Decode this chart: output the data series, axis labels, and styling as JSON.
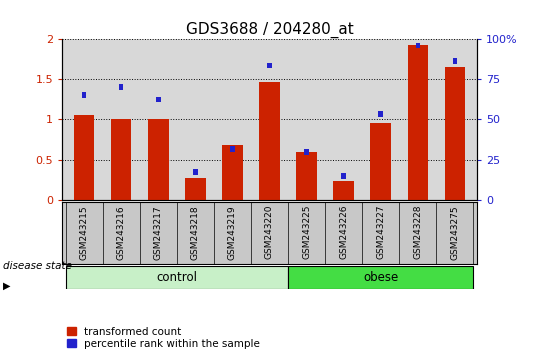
{
  "title": "GDS3688 / 204280_at",
  "samples": [
    "GSM243215",
    "GSM243216",
    "GSM243217",
    "GSM243218",
    "GSM243219",
    "GSM243220",
    "GSM243225",
    "GSM243226",
    "GSM243227",
    "GSM243228",
    "GSM243275"
  ],
  "transformed_count": [
    1.06,
    1.01,
    1.0,
    0.27,
    0.68,
    1.47,
    0.59,
    0.23,
    0.96,
    1.92,
    1.65
  ],
  "percentile_rank_left": [
    1.3,
    1.4,
    1.25,
    0.35,
    0.63,
    1.67,
    0.6,
    0.3,
    1.07,
    1.92,
    1.73
  ],
  "control_count": 6,
  "groups": [
    "control",
    "obese"
  ],
  "control_color": "#c8f0c8",
  "obese_color": "#44dd44",
  "bar_color_red": "#cc2200",
  "bar_color_blue": "#2222cc",
  "ylim_left": [
    0,
    2.0
  ],
  "ylim_right": [
    0,
    100
  ],
  "yticks_left": [
    0,
    0.5,
    1.0,
    1.5,
    2.0
  ],
  "ytick_labels_left": [
    "0",
    "0.5",
    "1",
    "1.5",
    "2"
  ],
  "yticks_right": [
    0,
    25,
    50,
    75,
    100
  ],
  "ytick_labels_right": [
    "0",
    "25",
    "50",
    "75",
    "100%"
  ],
  "background_color": "#ffffff",
  "plot_bg_color": "#d8d8d8",
  "xtick_bg_color": "#c8c8c8",
  "title_fontsize": 11,
  "legend_label_red": "transformed count",
  "legend_label_blue": "percentile rank within the sample",
  "disease_state_label": "disease state"
}
